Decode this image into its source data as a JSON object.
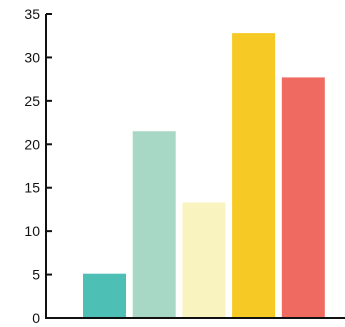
{
  "chart_data": {
    "type": "bar",
    "categories": [
      "",
      "",
      "",
      "",
      ""
    ],
    "values": [
      5.1,
      21.5,
      13.3,
      32.8,
      27.7
    ],
    "title": "",
    "xlabel": "",
    "ylabel": "",
    "ylim": [
      0,
      35
    ],
    "yticks": [
      0,
      5,
      10,
      15,
      20,
      25,
      30,
      35
    ],
    "ytick_labels": [
      "0",
      "5",
      "10",
      "15",
      "20",
      "25",
      "30",
      "35"
    ],
    "grid": false,
    "legend": "none",
    "bar_colors": [
      "#4ebfb5",
      "#a7d7c5",
      "#f9f3bf",
      "#f6c924",
      "#ef6b61"
    ]
  }
}
